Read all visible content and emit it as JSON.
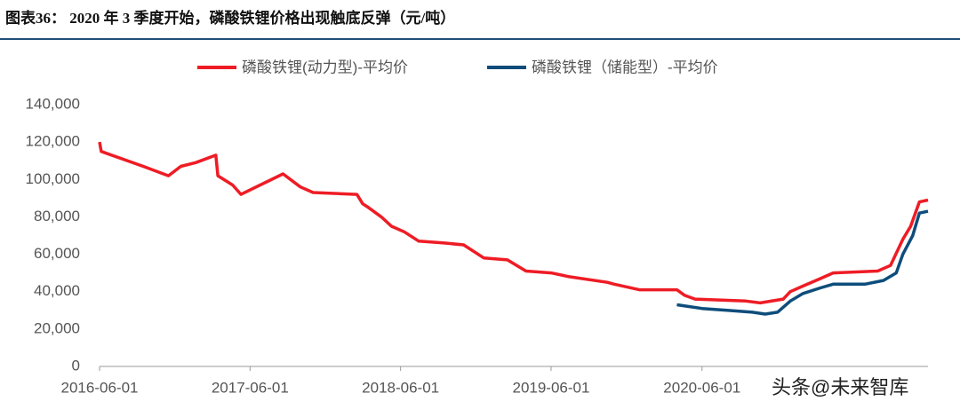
{
  "chart_data": {
    "type": "line",
    "title": "图表36： 2020 年 3 季度开始，磷酸铁锂价格出现触底反弹（元/吨）",
    "watermark": "头条@未来智库",
    "xlim": [
      "2016-06-01",
      "2021-12-01"
    ],
    "xticks": [
      "2016-06-01",
      "2017-06-01",
      "2018-06-01",
      "2019-06-01",
      "2020-06-01"
    ],
    "ylim": [
      0,
      140000
    ],
    "yticks": [
      0,
      {
        "value": 20000,
        "label": "20,000"
      },
      {
        "value": 40000,
        "label": "40,000"
      },
      {
        "value": 60000,
        "label": "60,000"
      },
      {
        "value": 80000,
        "label": "80,000"
      },
      {
        "value": 100000,
        "label": "100,000"
      },
      {
        "value": 120000,
        "label": "120,000"
      },
      {
        "value": 140000,
        "label": "140,000"
      }
    ],
    "series": [
      {
        "name": "磷酸铁锂(动力型)-平均价",
        "color": "#ee1c25",
        "x": [
          "2016-06-01",
          "2016-06-05",
          "2016-09-15",
          "2016-11-15",
          "2016-12-15",
          "2017-01-20",
          "2017-03-10",
          "2017-03-15",
          "2017-04-20",
          "2017-05-10",
          "2017-08-20",
          "2017-10-01",
          "2017-11-01",
          "2018-02-15",
          "2018-03-01",
          "2018-03-15",
          "2018-04-15",
          "2018-05-10",
          "2018-06-10",
          "2018-07-15",
          "2018-09-15",
          "2018-11-01",
          "2018-12-20",
          "2019-02-15",
          "2019-04-01",
          "2019-06-01",
          "2019-07-15",
          "2019-10-15",
          "2019-11-01",
          "2020-01-01",
          "2020-04-01",
          "2020-04-20",
          "2020-05-15",
          "2020-09-15",
          "2020-10-20",
          "2020-12-15",
          "2021-01-01",
          "2021-02-01",
          "2021-03-15",
          "2021-04-15",
          "2021-08-01",
          "2021-09-01",
          "2021-10-01",
          "2021-10-20",
          "2021-11-10",
          "2021-12-01"
        ],
        "values": [
          120000,
          115000,
          107000,
          102000,
          107000,
          109000,
          113000,
          102000,
          97000,
          92000,
          103000,
          96000,
          93000,
          92000,
          87000,
          85000,
          80000,
          75000,
          72000,
          67000,
          66000,
          65000,
          58000,
          57000,
          51000,
          50000,
          48000,
          45000,
          44000,
          41000,
          41000,
          38000,
          36000,
          35000,
          34000,
          36000,
          40000,
          43000,
          47000,
          50000,
          51000,
          54000,
          68000,
          75000,
          88000,
          89000
        ]
      },
      {
        "name": "磷酸铁锂（储能型）-平均价",
        "color": "#0e4d7b",
        "x": [
          "2020-04-01",
          "2020-06-01",
          "2020-08-01",
          "2020-10-01",
          "2020-11-01",
          "2020-12-01",
          "2021-01-01",
          "2021-02-01",
          "2021-03-15",
          "2021-04-15",
          "2021-07-01",
          "2021-08-15",
          "2021-09-15",
          "2021-10-01",
          "2021-10-25",
          "2021-11-10",
          "2021-12-01"
        ],
        "values": [
          33000,
          31000,
          30000,
          29000,
          28000,
          29000,
          35000,
          39000,
          42000,
          44000,
          44000,
          46000,
          50000,
          60000,
          70000,
          82000,
          83000
        ]
      }
    ]
  }
}
